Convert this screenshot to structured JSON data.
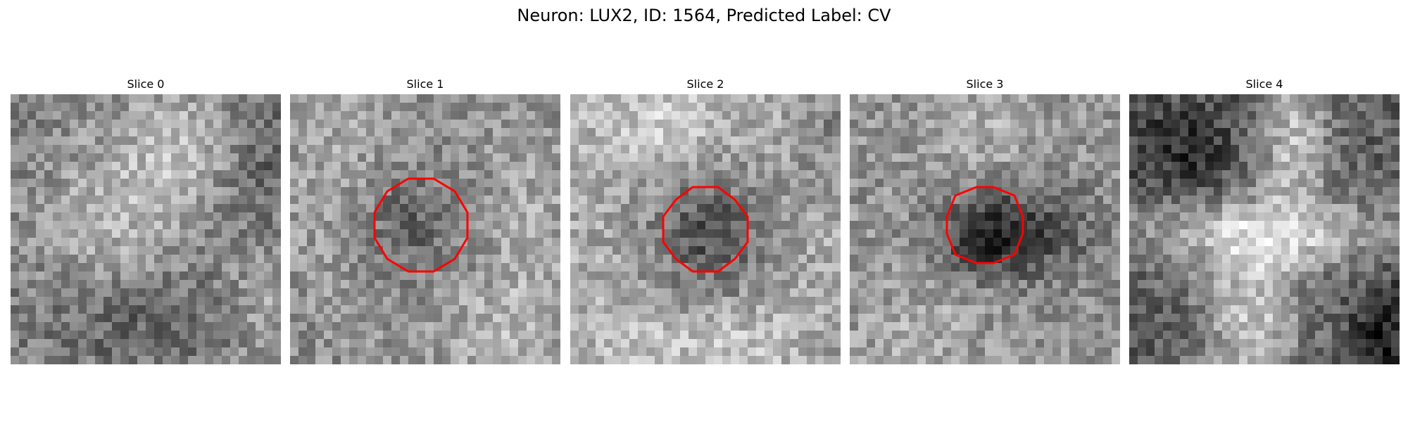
{
  "title": "Neuron: LUX2, ID: 1564, Predicted Label: CV",
  "contour_color": "#ff0000",
  "panels": [
    {
      "label": "Slice 0",
      "has_contour": false,
      "tone": "mid"
    },
    {
      "label": "Slice 1",
      "has_contour": true,
      "tone": "dark-center"
    },
    {
      "label": "Slice 2",
      "has_contour": true,
      "tone": "dark-center-bright-surround"
    },
    {
      "label": "Slice 3",
      "has_contour": true,
      "tone": "very-dark-center"
    },
    {
      "label": "Slice 4",
      "has_contour": false,
      "tone": "bright-cross"
    }
  ]
}
